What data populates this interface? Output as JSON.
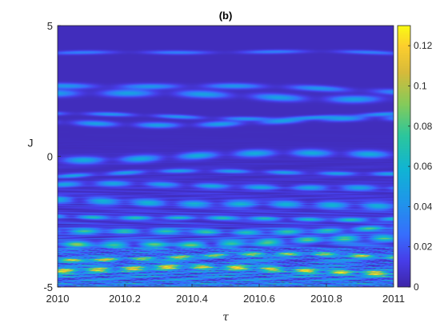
{
  "chart_data": {
    "type": "heatmap",
    "title": "(b)",
    "xlabel": "τ",
    "ylabel": "J",
    "xlim": [
      2010,
      2011
    ],
    "ylim": [
      -5,
      5
    ],
    "x_ticks": [
      "2010",
      "2010.2",
      "2010.4",
      "2010.6",
      "2010.8",
      "2011"
    ],
    "x_tick_values": [
      2010,
      2010.2,
      2010.4,
      2010.6,
      2010.8,
      2011
    ],
    "y_ticks": [
      "-5",
      "0",
      "5"
    ],
    "y_tick_values": [
      -5,
      0,
      5
    ],
    "colorbar": {
      "colormap": "parula",
      "range": [
        0,
        0.13
      ],
      "ticks": [
        "0",
        "0.02",
        "0.04",
        "0.06",
        "0.08",
        "0.1",
        "0.12"
      ],
      "tick_values": [
        0,
        0.02,
        0.04,
        0.06,
        0.08,
        0.1,
        0.12
      ]
    },
    "bands": [
      {
        "J": 3.9,
        "amplitude": 0.03
      },
      {
        "J": 2.6,
        "amplitude": 0.04
      },
      {
        "J": 2.35,
        "amplitude": 0.045
      },
      {
        "J": 1.6,
        "amplitude": 0.04
      },
      {
        "J": 1.35,
        "amplitude": 0.045
      },
      {
        "J": 0.0,
        "amplitude": 0.05
      },
      {
        "J": -0.7,
        "amplitude": 0.045
      },
      {
        "J": -1.2,
        "amplitude": 0.045
      },
      {
        "J": -1.8,
        "amplitude": 0.05
      },
      {
        "J": -2.3,
        "amplitude": 0.06
      },
      {
        "J": -2.8,
        "amplitude": 0.06
      },
      {
        "J": -3.3,
        "amplitude": 0.065
      },
      {
        "J": -3.9,
        "amplitude": 0.08
      },
      {
        "J": -4.4,
        "amplitude": 0.09
      }
    ]
  }
}
